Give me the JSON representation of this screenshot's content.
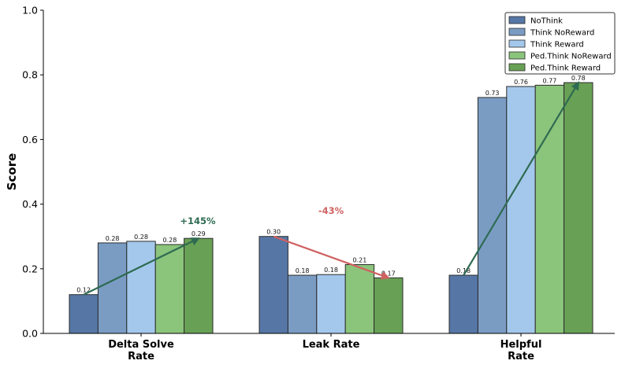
{
  "chart_data": {
    "type": "bar",
    "title": "",
    "xlabel": "",
    "ylabel": "Score",
    "ylim": [
      0,
      1.0
    ],
    "yticks": [
      "0.0",
      "0.2",
      "0.4",
      "0.6",
      "0.8",
      "1.0"
    ],
    "categories": [
      [
        "Delta Solve",
        "Rate"
      ],
      [
        "Leak Rate"
      ],
      [
        "Helpful",
        "Rate"
      ]
    ],
    "series": [
      {
        "name": "NoThink",
        "color": "#5677a6",
        "values": [
          0.12,
          0.3,
          0.18
        ],
        "labels": [
          "0.12",
          "0.30",
          "0.18"
        ]
      },
      {
        "name": "Think NoReward",
        "color": "#7a9cc3",
        "values": [
          0.28,
          0.18,
          0.73
        ],
        "labels": [
          "0.28",
          "0.18",
          "0.73"
        ]
      },
      {
        "name": "Think Reward",
        "color": "#a4c8eb",
        "values": [
          0.285,
          0.182,
          0.764
        ],
        "labels": [
          "0.28",
          "0.18",
          "0.76"
        ]
      },
      {
        "name": "Ped.Think NoReward",
        "color": "#8bc47b",
        "values": [
          0.275,
          0.213,
          0.768
        ],
        "labels": [
          "0.28",
          "0.21",
          "0.77"
        ]
      },
      {
        "name": "Ped.Think Reward",
        "color": "#68a155",
        "values": [
          0.294,
          0.172,
          0.776
        ],
        "labels": [
          "0.29",
          "0.17",
          "0.78"
        ]
      }
    ],
    "annotations": [
      {
        "category": 0,
        "text": "+145%",
        "color": "#2e6b52"
      },
      {
        "category": 1,
        "text": "-43%",
        "color": "#d06161"
      },
      {
        "category": 2,
        "text": "",
        "color": "#2e6b52"
      }
    ],
    "legend": {
      "position": "top-right"
    },
    "grid": false
  }
}
